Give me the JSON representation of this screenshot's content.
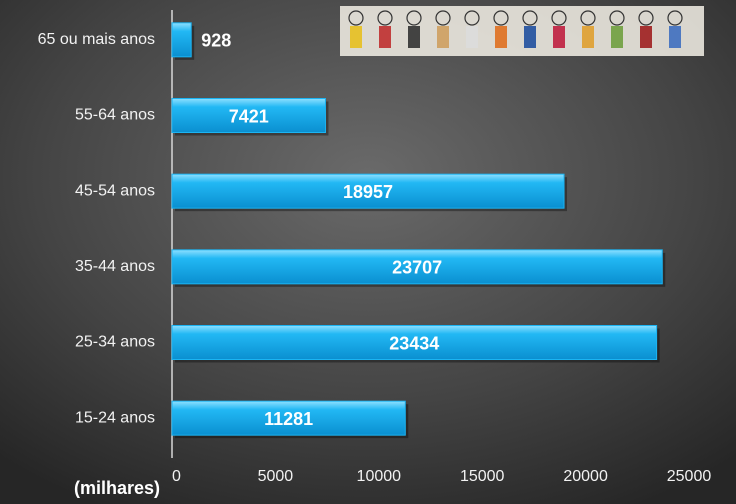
{
  "chart_data": {
    "type": "bar",
    "orientation": "horizontal",
    "categories": [
      "65 ou mais anos",
      "55-64 anos",
      "45-54 anos",
      "35-44 anos",
      "25-34 anos",
      "15-24 anos"
    ],
    "values": [
      928,
      7421,
      18957,
      23707,
      23434,
      11281
    ],
    "color": "#1cb4f2",
    "xlabel": "(milhares)",
    "xlim": [
      0,
      25000
    ],
    "xticks": [
      0,
      5000,
      10000,
      15000,
      20000,
      25000
    ]
  }
}
